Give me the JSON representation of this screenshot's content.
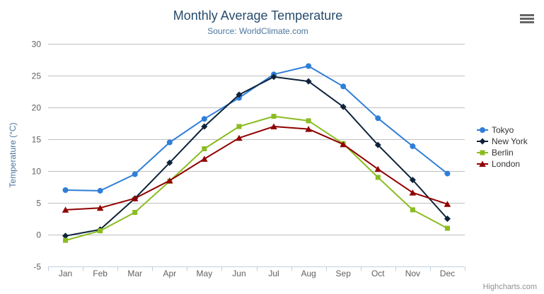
{
  "chart_data": {
    "type": "line",
    "title": "Monthly Average Temperature",
    "subtitle": "Source: WorldClimate.com",
    "xlabel": "",
    "ylabel": "Temperature (°C)",
    "ylim": [
      -5,
      30
    ],
    "yticks": [
      -5,
      0,
      5,
      10,
      15,
      20,
      25,
      30
    ],
    "grid": true,
    "legend_position": "right-middle",
    "categories": [
      "Jan",
      "Feb",
      "Mar",
      "Apr",
      "May",
      "Jun",
      "Jul",
      "Aug",
      "Sep",
      "Oct",
      "Nov",
      "Dec"
    ],
    "series": [
      {
        "name": "Tokyo",
        "color": "#2f7ed8",
        "marker": "circle",
        "values": [
          7.0,
          6.9,
          9.5,
          14.5,
          18.2,
          21.5,
          25.2,
          26.5,
          23.3,
          18.3,
          13.9,
          9.6
        ]
      },
      {
        "name": "New York",
        "color": "#0d233a",
        "marker": "diamond",
        "values": [
          -0.2,
          0.8,
          5.7,
          11.3,
          17.0,
          22.0,
          24.8,
          24.1,
          20.1,
          14.1,
          8.6,
          2.5
        ]
      },
      {
        "name": "Berlin",
        "color": "#8bbc21",
        "marker": "square",
        "values": [
          -0.9,
          0.6,
          3.5,
          8.4,
          13.5,
          17.0,
          18.6,
          17.9,
          14.3,
          9.0,
          3.9,
          1.0
        ]
      },
      {
        "name": "London",
        "color": "#910000",
        "marker": "triangle",
        "values": [
          3.9,
          4.2,
          5.7,
          8.5,
          11.9,
          15.2,
          17.0,
          16.6,
          14.2,
          10.3,
          6.6,
          4.8
        ]
      }
    ]
  },
  "credits": "Highcharts.com",
  "icons": {
    "export_menu": "hamburger-menu"
  },
  "colors": {
    "title": "#274b6d",
    "subtitle": "#4d759e",
    "axis_title": "#4d759e",
    "axis_labels": "#606060",
    "grid": "#c0c0c0",
    "x_axis_line": "#c0d0e0",
    "legend_text": "#333333",
    "credits": "#909090",
    "menu_icon": "#666666",
    "background": "#ffffff"
  }
}
